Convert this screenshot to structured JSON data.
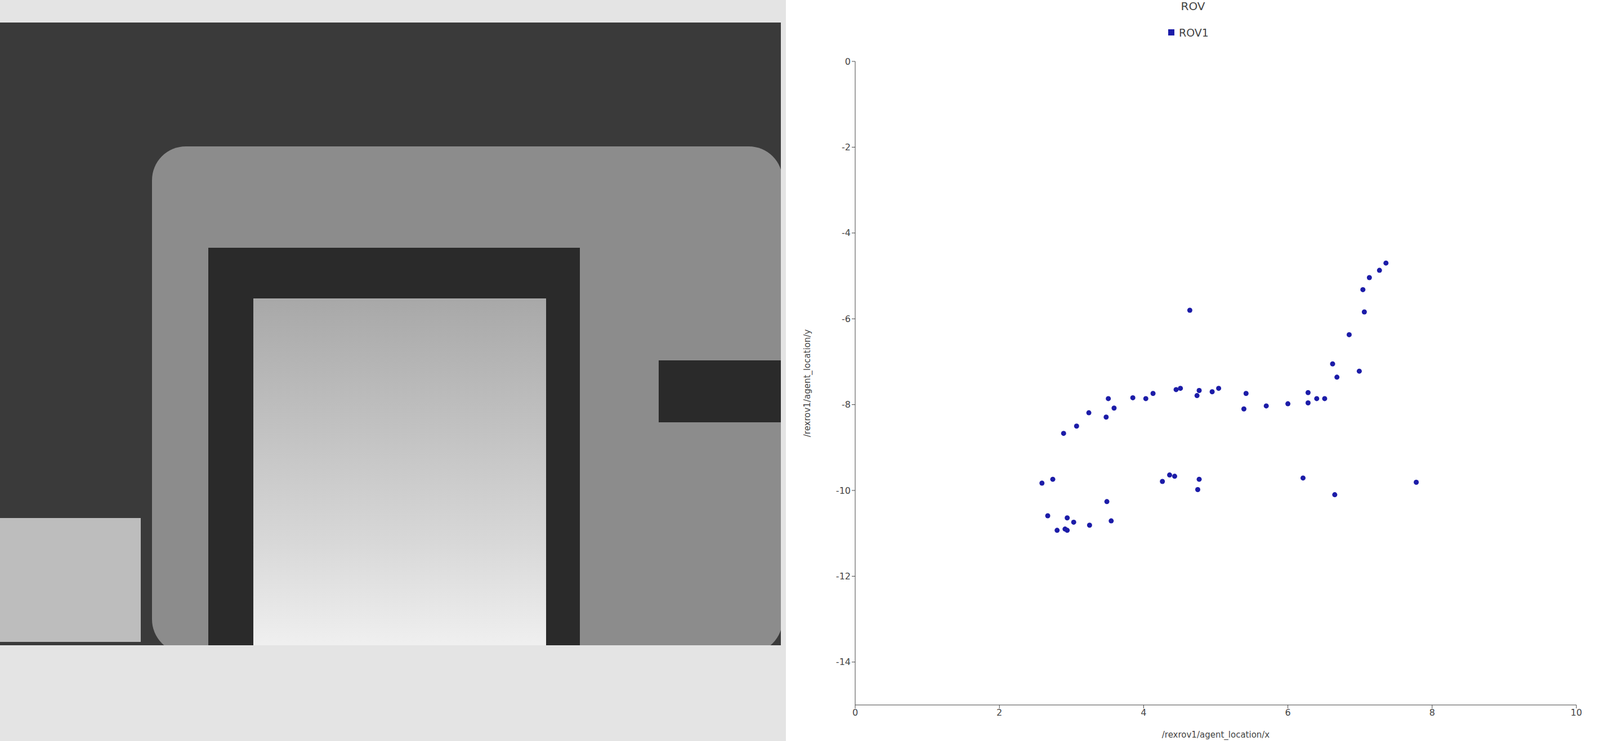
{
  "chart_data": {
    "type": "scatter",
    "title": "ROV",
    "x_label": "/rexrov1/agent_location/x",
    "y_label": "/rexrov1/agent_location/y",
    "legend": "top",
    "grid": false,
    "xlim": [
      0,
      10
    ],
    "xticks": [
      0,
      2,
      4,
      6,
      8,
      10
    ],
    "ylim": [
      -15,
      0
    ],
    "yticks": [
      0,
      -2,
      -4,
      -6,
      -8,
      -10,
      -12,
      -14
    ],
    "series": [
      {
        "name": "ROV1",
        "color": "#1c1ca8",
        "marker": "circle",
        "x": [
          7.36,
          7.27,
          7.13,
          7.04,
          7.06,
          6.85,
          6.62,
          6.68,
          6.99,
          4.64,
          6.51,
          6.4,
          6.28,
          6.28,
          6.0,
          5.7,
          5.42,
          5.39,
          5.04,
          4.95,
          4.77,
          4.74,
          4.51,
          4.45,
          4.13,
          4.03,
          3.85,
          3.59,
          3.51,
          3.48,
          3.24,
          3.07,
          2.89,
          2.59,
          2.74,
          2.67,
          2.8,
          2.91,
          2.94,
          3.03,
          2.94,
          3.25,
          3.49,
          3.55,
          4.26,
          4.36,
          4.43,
          4.77,
          4.75,
          6.21,
          6.65,
          7.78
        ],
        "values": [
          -4.7,
          -4.87,
          -5.04,
          -5.32,
          -5.84,
          -6.37,
          -7.05,
          -7.36,
          -7.22,
          -5.8,
          -7.86,
          -7.86,
          -7.72,
          -7.96,
          -7.98,
          -8.03,
          -7.74,
          -8.1,
          -7.62,
          -7.7,
          -7.67,
          -7.79,
          -7.62,
          -7.65,
          -7.74,
          -7.86,
          -7.84,
          -8.08,
          -7.86,
          -8.29,
          -8.19,
          -8.5,
          -8.67,
          -9.83,
          -9.74,
          -10.59,
          -10.93,
          -10.9,
          -10.64,
          -10.74,
          -10.93,
          -10.81,
          -10.26,
          -10.71,
          -9.79,
          -9.64,
          -9.67,
          -9.74,
          -9.98,
          -9.71,
          -10.1,
          -9.81
        ]
      }
    ]
  }
}
